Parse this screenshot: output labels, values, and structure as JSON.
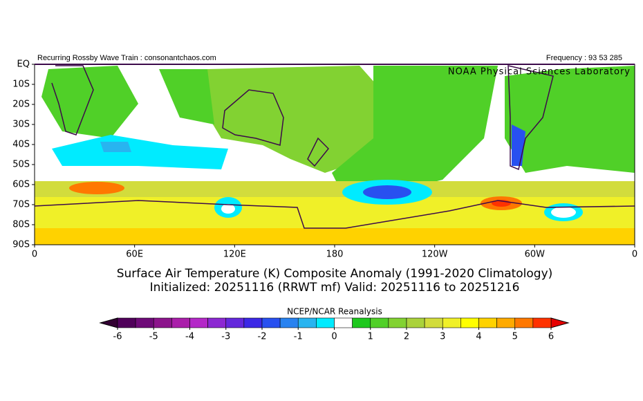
{
  "header": {
    "left": "Recurring Rossby Wave Train : consonantchaos.com",
    "right": "Frequency : 93 53 285",
    "lab": "NOAA Physical Sciences Laboratory"
  },
  "map": {
    "lat_labels": [
      "EQ",
      "10S",
      "20S",
      "30S",
      "40S",
      "50S",
      "60S",
      "70S",
      "80S",
      "90S"
    ],
    "lon_labels": [
      "0",
      "60E",
      "120E",
      "180",
      "120W",
      "60W",
      "0"
    ]
  },
  "title": {
    "line1": "Surface Air Temperature (K) Composite Anomaly (1991-2020 Climatology)",
    "line2": "Initialized: 20251116 (RRWT mf) Valid: 20251116 to 20251216"
  },
  "colorbar": {
    "title": "NCEP/NCAR Reanalysis",
    "ticks": [
      -6,
      -5,
      -4,
      -3,
      -2,
      -1,
      0,
      1,
      2,
      3,
      4,
      5,
      6
    ],
    "under_color": "#320032",
    "over_color": "#e60000",
    "colors": [
      "#50005a",
      "#6e0a78",
      "#8c148c",
      "#aa1eaa",
      "#b428c8",
      "#8c28d2",
      "#6428dc",
      "#3c28e6",
      "#2850f0",
      "#2882f0",
      "#28b4f0",
      "#00ebff",
      "#ffffff",
      "#1ec81e",
      "#50d028",
      "#82d232",
      "#aad23c",
      "#d2dc3c",
      "#f0f028",
      "#ffff00",
      "#ffd200",
      "#ffaa00",
      "#ff7800",
      "#ff3200"
    ]
  }
}
